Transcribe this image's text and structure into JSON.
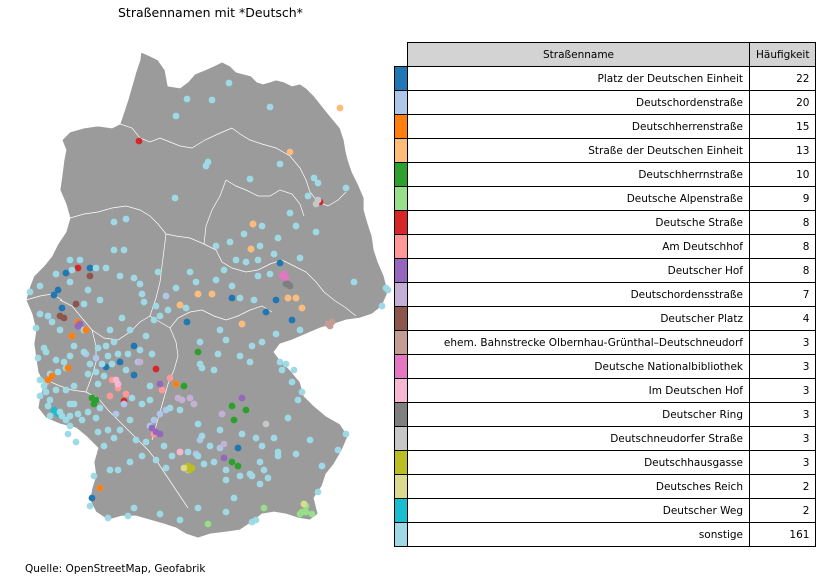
{
  "title": "Straßennamen mit *Deutsch*",
  "source": "Quelle: OpenStreetMap, Geofabrik",
  "table": {
    "headers": {
      "name": "Straßenname",
      "count": "Häufigkeit"
    },
    "rows": [
      {
        "name": "Platz der Deutschen Einheit",
        "count": "22",
        "color": "#1f77b4"
      },
      {
        "name": "Deutschordenstraße",
        "count": "20",
        "color": "#aec7e8"
      },
      {
        "name": "Deutschherrenstraße",
        "count": "15",
        "color": "#ff7f0e"
      },
      {
        "name": "Straße der Deutschen Einheit",
        "count": "13",
        "color": "#ffbb78"
      },
      {
        "name": "Deutschherrnstraße",
        "count": "10",
        "color": "#2ca02c"
      },
      {
        "name": "Deutsche Alpenstraße",
        "count": "9",
        "color": "#98df8a"
      },
      {
        "name": "Deutsche Straße",
        "count": "8",
        "color": "#d62728"
      },
      {
        "name": "Am Deutschhof",
        "count": "8",
        "color": "#ff9896"
      },
      {
        "name": "Deutscher Hof",
        "count": "8",
        "color": "#9467bd"
      },
      {
        "name": "Deutschordensstraße",
        "count": "7",
        "color": "#c5b0d5"
      },
      {
        "name": "Deutscher Platz",
        "count": "4",
        "color": "#8c564b"
      },
      {
        "name": "ehem. Bahnstrecke Olbernhau-Grünthal–Deutschneudorf",
        "count": "3",
        "color": "#c49c94"
      },
      {
        "name": "Deutsche Nationalbibliothek",
        "count": "3",
        "color": "#e377c2"
      },
      {
        "name": "Im Deutschen Hof",
        "count": "3",
        "color": "#f7b6d2"
      },
      {
        "name": "Deutscher Ring",
        "count": "3",
        "color": "#7f7f7f"
      },
      {
        "name": "Deutschneudorfer Straße",
        "count": "3",
        "color": "#c7c7c7"
      },
      {
        "name": "Deutschhausgasse",
        "count": "3",
        "color": "#bcbd22"
      },
      {
        "name": "Deutsches Reich",
        "count": "2",
        "color": "#dbdb8d"
      },
      {
        "name": "Deutscher Weg",
        "count": "2",
        "color": "#17becf"
      },
      {
        "name": "sonstige",
        "count": "161",
        "color": "#9edae5"
      }
    ]
  },
  "map": {
    "land_color": "#9b9b9b",
    "border_color": "#ffffff"
  }
}
